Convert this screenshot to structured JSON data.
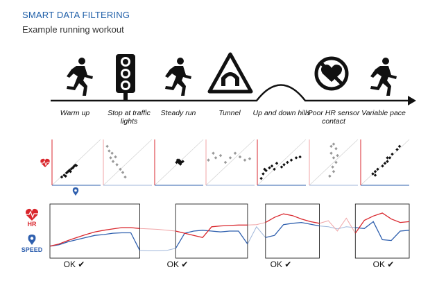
{
  "header": {
    "title": "SMART DATA FILTERING",
    "subtitle": "Example running workout"
  },
  "stages": [
    {
      "label": "Warm up",
      "icon": "runner-icon"
    },
    {
      "label": "Stop at traffic lights",
      "icon": "traffic-light-icon"
    },
    {
      "label": "Steady run",
      "icon": "runner-icon"
    },
    {
      "label": "Tunnel",
      "icon": "tunnel-sign-icon"
    },
    {
      "label": "Up and down hills",
      "icon": "hill-icon"
    },
    {
      "label": "Poor HR sensor contact",
      "icon": "no-heart-icon"
    },
    {
      "label": "Variable pace",
      "icon": "runner-icon"
    }
  ],
  "axis_icons": {
    "hr": "heart-rate-icon",
    "speed": "location-pin-icon"
  },
  "legend": {
    "hr_label": "HR",
    "speed_label": "SPEED"
  },
  "ok_badges": [
    {
      "label": "OK ✔"
    },
    {
      "label": "OK ✔"
    },
    {
      "label": "OK ✔"
    },
    {
      "label": "OK ✔"
    }
  ],
  "colors": {
    "accent": "#1f5fa8",
    "hr": "#d9262c",
    "hr_faded": "#f0a3a5",
    "speed": "#2e5fae",
    "speed_faded": "#9fb6da",
    "scatter_ok": "#111111",
    "scatter_bad": "#999999"
  },
  "chart_data": {
    "type": "scatter",
    "note": "",
    "panels": [
      {
        "stage": "Warm up",
        "good": true,
        "points": [
          [
            0.2,
            0.18
          ],
          [
            0.25,
            0.22
          ],
          [
            0.3,
            0.27
          ],
          [
            0.33,
            0.3
          ],
          [
            0.36,
            0.33
          ],
          [
            0.4,
            0.36
          ],
          [
            0.43,
            0.38
          ],
          [
            0.45,
            0.41
          ],
          [
            0.48,
            0.44
          ],
          [
            0.5,
            0.43
          ],
          [
            0.28,
            0.2
          ],
          [
            0.38,
            0.3
          ]
        ]
      },
      {
        "stage": "Stop at traffic lights",
        "good": false,
        "points": [
          [
            0.08,
            0.85
          ],
          [
            0.12,
            0.75
          ],
          [
            0.15,
            0.6
          ],
          [
            0.2,
            0.52
          ],
          [
            0.28,
            0.45
          ],
          [
            0.35,
            0.35
          ],
          [
            0.4,
            0.28
          ],
          [
            0.45,
            0.18
          ],
          [
            0.18,
            0.7
          ],
          [
            0.25,
            0.62
          ]
        ]
      },
      {
        "stage": "Steady run",
        "good": true,
        "points": [
          [
            0.45,
            0.5
          ],
          [
            0.48,
            0.52
          ],
          [
            0.5,
            0.49
          ],
          [
            0.52,
            0.53
          ],
          [
            0.55,
            0.5
          ],
          [
            0.47,
            0.55
          ],
          [
            0.53,
            0.46
          ],
          [
            0.5,
            0.55
          ],
          [
            0.58,
            0.52
          ]
        ]
      },
      {
        "stage": "Tunnel",
        "good": false,
        "points": [
          [
            0.05,
            0.55
          ],
          [
            0.2,
            0.6
          ],
          [
            0.3,
            0.65
          ],
          [
            0.4,
            0.5
          ],
          [
            0.5,
            0.6
          ],
          [
            0.6,
            0.7
          ],
          [
            0.7,
            0.62
          ],
          [
            0.8,
            0.55
          ],
          [
            0.9,
            0.58
          ],
          [
            0.15,
            0.7
          ]
        ]
      },
      {
        "stage": "Up and down hills",
        "good": true,
        "points": [
          [
            0.08,
            0.15
          ],
          [
            0.12,
            0.25
          ],
          [
            0.18,
            0.32
          ],
          [
            0.25,
            0.38
          ],
          [
            0.3,
            0.42
          ],
          [
            0.35,
            0.35
          ],
          [
            0.4,
            0.48
          ],
          [
            0.5,
            0.4
          ],
          [
            0.55,
            0.45
          ],
          [
            0.62,
            0.5
          ],
          [
            0.7,
            0.55
          ],
          [
            0.8,
            0.6
          ],
          [
            0.88,
            0.62
          ],
          [
            0.15,
            0.35
          ]
        ]
      },
      {
        "stage": "Poor HR sensor contact",
        "good": false,
        "points": [
          [
            0.5,
            0.9
          ],
          [
            0.55,
            0.8
          ],
          [
            0.45,
            0.7
          ],
          [
            0.5,
            0.6
          ],
          [
            0.55,
            0.5
          ],
          [
            0.48,
            0.4
          ],
          [
            0.5,
            0.3
          ],
          [
            0.42,
            0.2
          ],
          [
            0.58,
            0.65
          ],
          [
            0.45,
            0.85
          ]
        ]
      },
      {
        "stage": "Variable pace",
        "good": true,
        "points": [
          [
            0.25,
            0.25
          ],
          [
            0.3,
            0.3
          ],
          [
            0.35,
            0.35
          ],
          [
            0.45,
            0.42
          ],
          [
            0.5,
            0.48
          ],
          [
            0.55,
            0.52
          ],
          [
            0.6,
            0.6
          ],
          [
            0.65,
            0.68
          ],
          [
            0.75,
            0.78
          ],
          [
            0.8,
            0.85
          ],
          [
            0.3,
            0.22
          ],
          [
            0.55,
            0.6
          ]
        ]
      }
    ],
    "timeseries": {
      "x": [
        0,
        1,
        2,
        3,
        4,
        5,
        6,
        7,
        8,
        9,
        10,
        11,
        12,
        13,
        14,
        15,
        16,
        17,
        18,
        19,
        20,
        21,
        22,
        23,
        24,
        25,
        26,
        27,
        28,
        29,
        30,
        31,
        32,
        33,
        34,
        35,
        36,
        37,
        38,
        39,
        40
      ],
      "hr": [
        0.15,
        0.2,
        0.28,
        0.35,
        0.42,
        0.48,
        0.52,
        0.55,
        0.58,
        0.58,
        0.56,
        0.55,
        0.54,
        0.52,
        0.5,
        0.45,
        0.4,
        0.35,
        0.6,
        0.62,
        0.63,
        0.64,
        0.64,
        0.65,
        0.7,
        0.82,
        0.9,
        0.86,
        0.78,
        0.72,
        0.68,
        0.74,
        0.5,
        0.8,
        0.45,
        0.75,
        0.85,
        0.92,
        0.78,
        0.7,
        0.72
      ],
      "speed": [
        0.15,
        0.18,
        0.25,
        0.3,
        0.35,
        0.4,
        0.42,
        0.45,
        0.46,
        0.46,
        0.05,
        0.04,
        0.04,
        0.05,
        0.1,
        0.45,
        0.5,
        0.52,
        0.5,
        0.48,
        0.5,
        0.5,
        0.2,
        0.6,
        0.35,
        0.4,
        0.65,
        0.68,
        0.7,
        0.66,
        0.62,
        0.6,
        0.55,
        0.6,
        0.58,
        0.56,
        0.72,
        0.3,
        0.28,
        0.5,
        0.52
      ],
      "ok_windows": [
        [
          0,
          10
        ],
        [
          14,
          22
        ],
        [
          24,
          30
        ],
        [
          34,
          40
        ]
      ]
    }
  }
}
